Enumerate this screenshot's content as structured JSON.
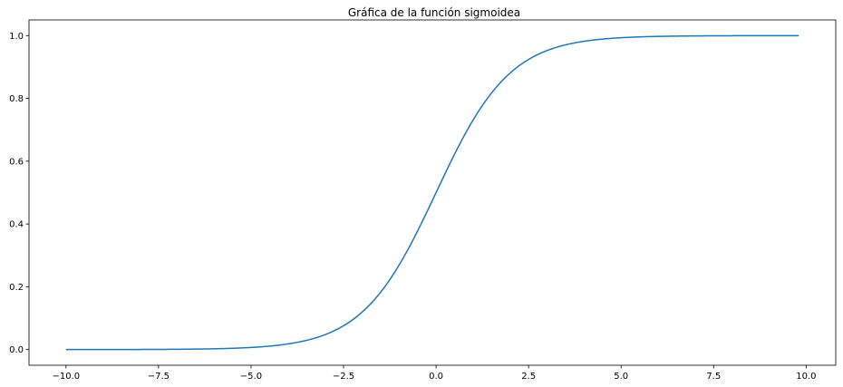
{
  "chart_data": {
    "type": "line",
    "title": "Gráfica de la función sigmoidea",
    "xlabel": "",
    "ylabel": "",
    "xlim": [
      -11.0,
      10.8
    ],
    "ylim": [
      -0.05,
      1.05
    ],
    "grid": false,
    "legend": "none",
    "x_ticks": [
      -10.0,
      -7.5,
      -5.0,
      -2.5,
      0.0,
      2.5,
      5.0,
      7.5,
      10.0
    ],
    "x_tick_labels": [
      "−10.0",
      "−7.5",
      "−5.0",
      "−2.5",
      "0.0",
      "2.5",
      "5.0",
      "7.5",
      "10.0"
    ],
    "y_ticks": [
      0.0,
      0.2,
      0.4,
      0.6,
      0.8,
      1.0
    ],
    "y_tick_labels": [
      "0.0",
      "0.2",
      "0.4",
      "0.6",
      "0.8",
      "1.0"
    ],
    "series": [
      {
        "function": "1/(1+exp(-x))",
        "x_range": [
          -10.0,
          9.8
        ],
        "color": "#1f77b4"
      }
    ]
  }
}
